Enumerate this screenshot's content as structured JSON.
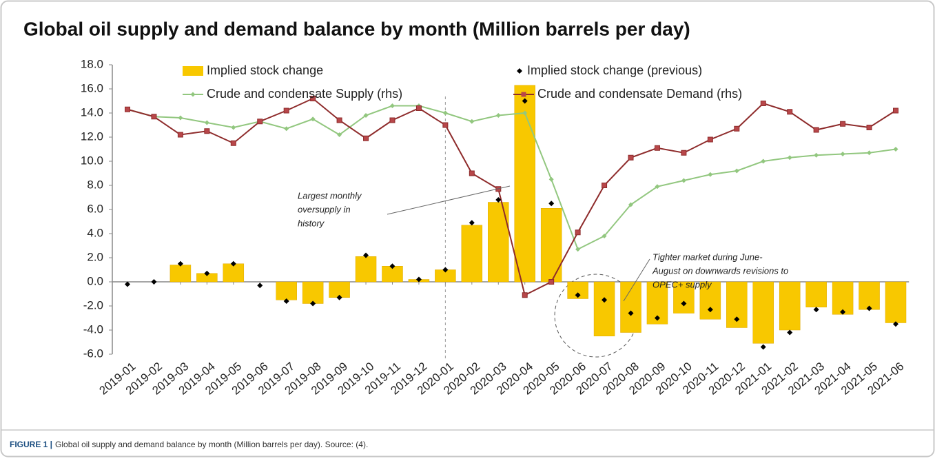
{
  "chart_data": {
    "type": "bar",
    "title": "Global oil supply and demand balance by month (Million barrels per day)",
    "caption_label": "FIGURE 1 |",
    "caption": "Global oil supply and demand balance by month (Million barrels per day). Source: (4).",
    "categories": [
      "2019-01",
      "2019-02",
      "2019-03",
      "2019-04",
      "2019-05",
      "2019-06",
      "2019-07",
      "2019-08",
      "2019-09",
      "2019-10",
      "2019-11",
      "2019-12",
      "2020-01",
      "2020-02",
      "2020-03",
      "2020-04",
      "2020-05",
      "2020-06",
      "2020-07",
      "2020-08",
      "2020-09",
      "2020-10",
      "2020-11",
      "2020-12",
      "2021-01",
      "2021-02",
      "2021-03",
      "2021-04",
      "2021-05",
      "2021-06"
    ],
    "series": [
      {
        "name": "Implied stock change",
        "type": "bar",
        "color": "#f8c800",
        "values": [
          0,
          0,
          1.4,
          0.7,
          1.5,
          0,
          -1.5,
          -1.8,
          -1.3,
          2.1,
          1.3,
          0.2,
          1.0,
          4.7,
          6.6,
          16.3,
          6.1,
          -1.4,
          -4.5,
          -4.2,
          -3.5,
          -2.6,
          -3.1,
          -3.8,
          -5.1,
          -4.0,
          -2.1,
          -2.7,
          -2.3,
          -3.4
        ]
      },
      {
        "name": "Implied stock change (previous)",
        "type": "diamond",
        "color": "#000000",
        "values": [
          -0.2,
          0.0,
          1.5,
          0.7,
          1.5,
          -0.3,
          -1.6,
          -1.8,
          -1.3,
          2.2,
          1.3,
          0.2,
          1.0,
          4.9,
          6.8,
          15.0,
          6.5,
          -1.1,
          -1.5,
          -2.6,
          -3.0,
          -1.8,
          -2.3,
          -3.1,
          -5.4,
          -4.2,
          -2.3,
          -2.5,
          -2.2,
          -3.5
        ]
      },
      {
        "name": "Crude and condensate Supply (rhs)",
        "type": "line",
        "marker": "diamond",
        "color": "#92c77f",
        "values": [
          14.3,
          13.7,
          13.6,
          13.2,
          12.8,
          13.3,
          12.7,
          13.5,
          12.2,
          13.8,
          14.6,
          14.6,
          14.0,
          13.3,
          13.8,
          14.0,
          8.5,
          2.7,
          3.8,
          6.4,
          7.9,
          8.4,
          8.9,
          9.2,
          10.0,
          10.3,
          10.5,
          10.6,
          10.7,
          11.0
        ]
      },
      {
        "name": "Crude and condensate Demand (rhs)",
        "type": "line",
        "marker": "square",
        "color": "#8e2b2b",
        "values": [
          14.3,
          13.7,
          12.2,
          12.5,
          11.5,
          13.3,
          14.2,
          15.2,
          13.4,
          11.9,
          13.4,
          14.4,
          13.0,
          9.0,
          7.7,
          -1.1,
          0.0,
          4.1,
          8.0,
          10.3,
          11.1,
          10.7,
          11.8,
          12.7,
          14.8,
          14.1,
          12.6,
          13.1,
          12.8,
          14.2
        ]
      }
    ],
    "ylim": [
      -6,
      18
    ],
    "yticks": [
      {
        "value": -6,
        "label": "-6.0"
      },
      {
        "value": -4,
        "label": "-4.0"
      },
      {
        "value": -2,
        "label": "-2.0"
      },
      {
        "value": 0,
        "label": "0.0"
      },
      {
        "value": 2,
        "label": "2.0"
      },
      {
        "value": 4,
        "label": "4.0"
      },
      {
        "value": 6,
        "label": "6.0"
      },
      {
        "value": 8,
        "label": "8.0"
      },
      {
        "value": 10,
        "label": "10.0"
      },
      {
        "value": 12,
        "label": "12.0"
      },
      {
        "value": 14,
        "label": "14.0"
      },
      {
        "value": 16,
        "label": "16.0"
      },
      {
        "value": 18,
        "label": "18.0"
      }
    ],
    "annotations": [
      {
        "lines": [
          "Largest monthly",
          "oversupply in",
          "history"
        ]
      },
      {
        "lines": [
          "Tighter market during June-",
          "August on downwards revisions to",
          "OPEC+ supply"
        ]
      }
    ]
  }
}
